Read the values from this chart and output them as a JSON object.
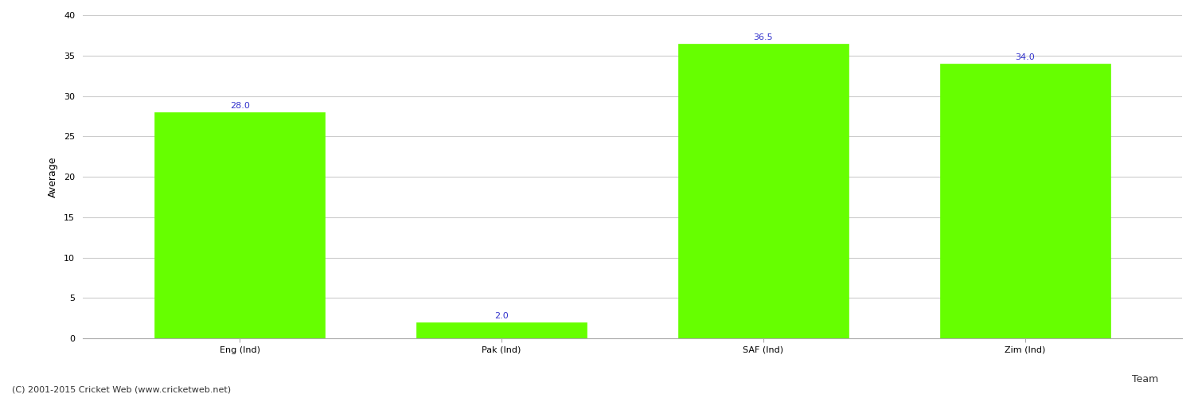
{
  "categories": [
    "Eng (Ind)",
    "Pak (Ind)",
    "SAF (Ind)",
    "Zim (Ind)"
  ],
  "values": [
    28.0,
    2.0,
    36.5,
    34.0
  ],
  "bar_color": "#66ff00",
  "bar_edge_color": "#66ff00",
  "label_color": "#3333cc",
  "xlabel": "Team",
  "ylabel": "Average",
  "ylim": [
    0,
    40
  ],
  "yticks": [
    0,
    5,
    10,
    15,
    20,
    25,
    30,
    35,
    40
  ],
  "grid_color": "#cccccc",
  "bg_color": "#ffffff",
  "footer": "(C) 2001-2015 Cricket Web (www.cricketweb.net)",
  "bar_width": 0.65,
  "label_fontsize": 8,
  "axis_label_fontsize": 9,
  "tick_fontsize": 8,
  "footer_fontsize": 8
}
